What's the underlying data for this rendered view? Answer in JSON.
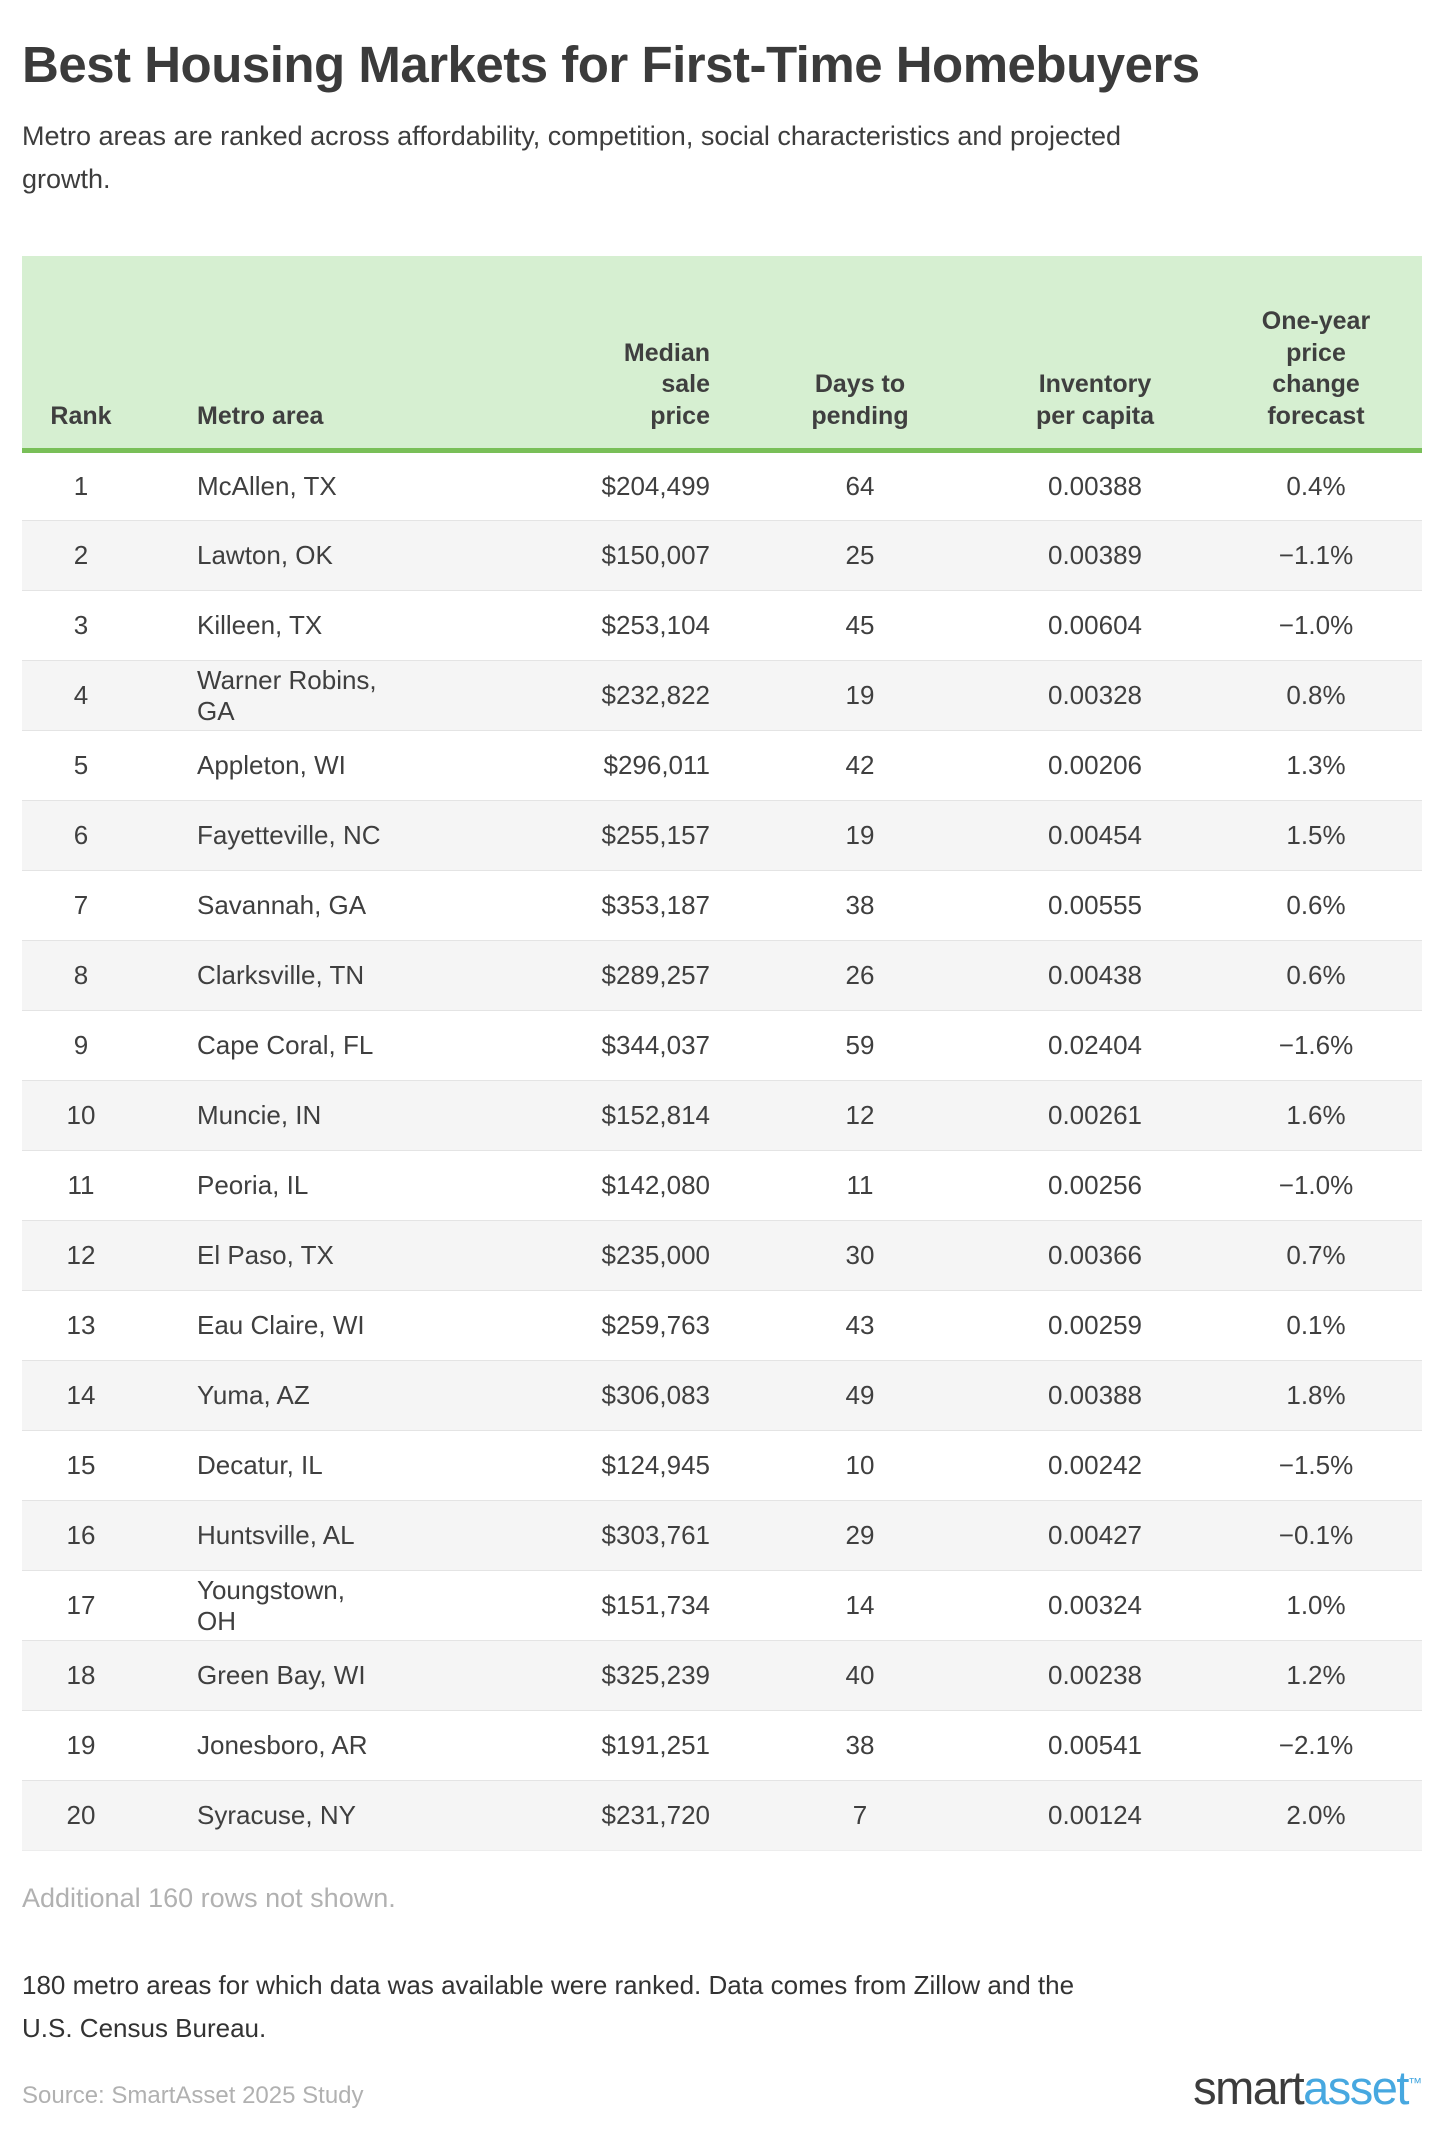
{
  "page": {
    "title": "Best Housing Markets for First-Time Homebuyers",
    "subtitle": "Metro areas are ranked across affordability, competition, social characteristics and projected growth.",
    "additional_rows_note": "Additional 160 rows not shown.",
    "methodology_note": "180 metro areas for which data was available were ranked. Data comes from Zillow and the U.S. Census Bureau.",
    "source": "Source: SmartAsset 2025 Study",
    "logo": {
      "part1": "smart",
      "part2": "asset",
      "trademark": "™"
    }
  },
  "colors": {
    "header_bg": "#d6efd1",
    "header_border": "#79bf58",
    "row_stripe": "#f5f5f5",
    "row_divider": "#e4e4e4",
    "text": "#3f3f3f",
    "muted_text": "#b1b1b1",
    "logo_dark": "#3c3c3c",
    "logo_blue": "#47a8e0"
  },
  "chart_data": {
    "type": "table",
    "title": "Best Housing Markets for First-Time Homebuyers",
    "columns": [
      {
        "key": "rank",
        "label": "Rank",
        "align": "center"
      },
      {
        "key": "metro-area",
        "label": "Metro area",
        "align": "left"
      },
      {
        "key": "median-sale-price",
        "label": "Median\nsale\nprice",
        "align": "right"
      },
      {
        "key": "days-to-pending",
        "label": "Days to\npending",
        "align": "center"
      },
      {
        "key": "inventory-per-capita",
        "label": "Inventory\nper capita",
        "align": "center"
      },
      {
        "key": "one-year-price-change-forecast",
        "label": "One-year\nprice\nchange\nforecast",
        "align": "center"
      }
    ],
    "rows": [
      [
        "1",
        "McAllen, TX",
        "$204,499",
        "64",
        "0.00388",
        "0.4%"
      ],
      [
        "2",
        "Lawton, OK",
        "$150,007",
        "25",
        "0.00389",
        "−1.1%"
      ],
      [
        "3",
        "Killeen, TX",
        "$253,104",
        "45",
        "0.00604",
        "−1.0%"
      ],
      [
        "4",
        "Warner Robins, GA",
        "$232,822",
        "19",
        "0.00328",
        "0.8%"
      ],
      [
        "5",
        "Appleton, WI",
        "$296,011",
        "42",
        "0.00206",
        "1.3%"
      ],
      [
        "6",
        "Fayetteville, NC",
        "$255,157",
        "19",
        "0.00454",
        "1.5%"
      ],
      [
        "7",
        "Savannah, GA",
        "$353,187",
        "38",
        "0.00555",
        "0.6%"
      ],
      [
        "8",
        "Clarksville, TN",
        "$289,257",
        "26",
        "0.00438",
        "0.6%"
      ],
      [
        "9",
        "Cape Coral, FL",
        "$344,037",
        "59",
        "0.02404",
        "−1.6%"
      ],
      [
        "10",
        "Muncie, IN",
        "$152,814",
        "12",
        "0.00261",
        "1.6%"
      ],
      [
        "11",
        "Peoria, IL",
        "$142,080",
        "11",
        "0.00256",
        "−1.0%"
      ],
      [
        "12",
        "El Paso, TX",
        "$235,000",
        "30",
        "0.00366",
        "0.7%"
      ],
      [
        "13",
        "Eau Claire, WI",
        "$259,763",
        "43",
        "0.00259",
        "0.1%"
      ],
      [
        "14",
        "Yuma, AZ",
        "$306,083",
        "49",
        "0.00388",
        "1.8%"
      ],
      [
        "15",
        "Decatur, IL",
        "$124,945",
        "10",
        "0.00242",
        "−1.5%"
      ],
      [
        "16",
        "Huntsville, AL",
        "$303,761",
        "29",
        "0.00427",
        "−0.1%"
      ],
      [
        "17",
        "Youngstown, OH",
        "$151,734",
        "14",
        "0.00324",
        "1.0%"
      ],
      [
        "18",
        "Green Bay, WI",
        "$325,239",
        "40",
        "0.00238",
        "1.2%"
      ],
      [
        "19",
        "Jonesboro, AR",
        "$191,251",
        "38",
        "0.00541",
        "−2.1%"
      ],
      [
        "20",
        "Syracuse, NY",
        "$231,720",
        "7",
        "0.00124",
        "2.0%"
      ]
    ]
  }
}
